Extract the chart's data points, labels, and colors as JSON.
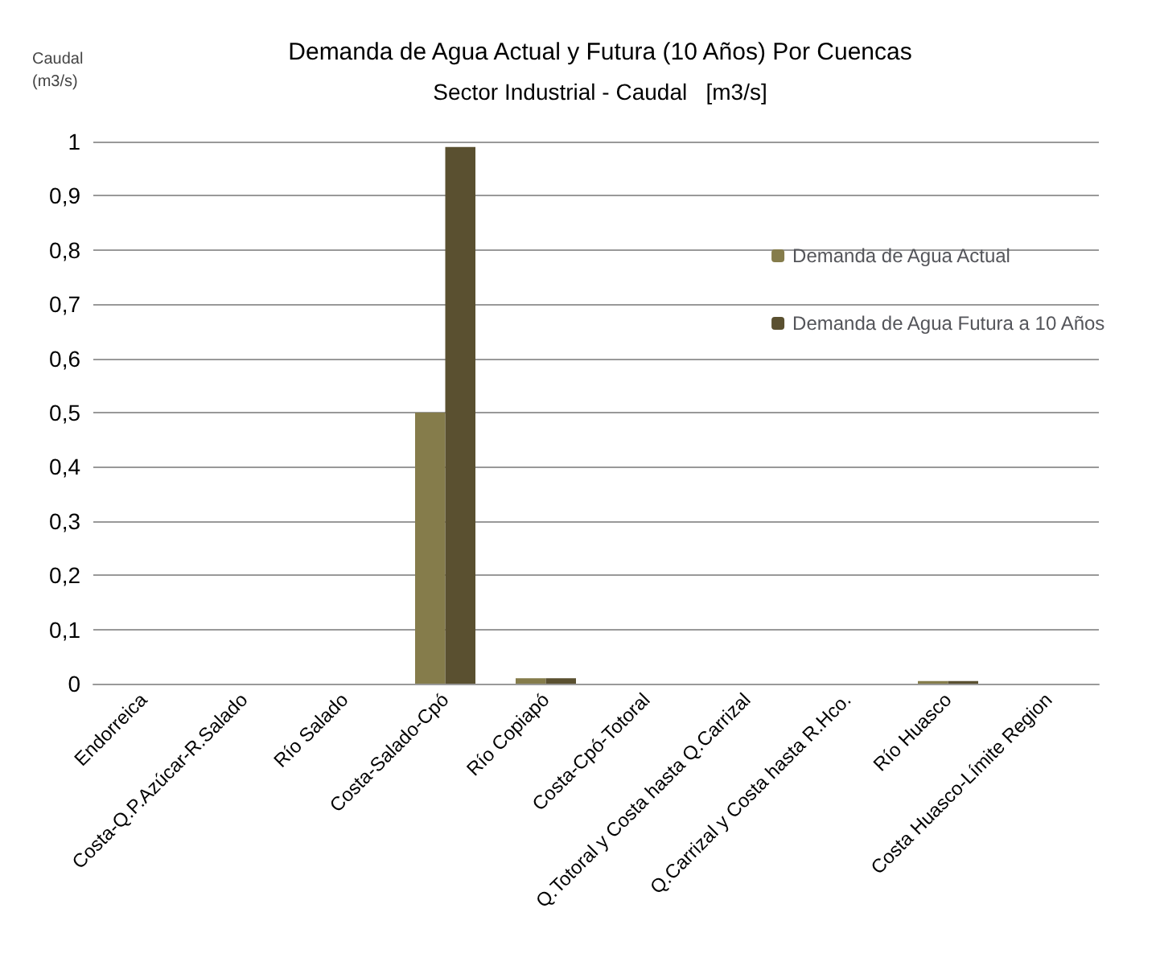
{
  "chart_data": {
    "type": "bar",
    "title": "Demanda de Agua Actual y Futura (10 Años) Por Cuencas",
    "subtitle": "Sector Industrial - Caudal   [m3/s]",
    "ylabel": "Caudal (m3/s)",
    "categories": [
      "Endorreica",
      "Costa-Q.P.Azúcar-R.Salado",
      "Río Salado",
      "Costa-Salado-Cpó",
      "Río Copiapó",
      "Costa-Cpó-Totoral",
      "Q.Totoral y Costa hasta Q.Carrizal",
      "Q.Carrizal y Costa hasta R.Hco.",
      "Río Huasco",
      "Costa Huasco-Límite Region"
    ],
    "series": [
      {
        "name": "Demanda de Agua Actual",
        "color": "#857c4b",
        "values": [
          0,
          0,
          0,
          0.5,
          0.01,
          0,
          0,
          0,
          0.005,
          0
        ]
      },
      {
        "name": "Demanda de Agua Futura a 10 Años",
        "color": "#5a5030",
        "values": [
          0,
          0,
          0,
          0.99,
          0.01,
          0,
          0,
          0,
          0.005,
          0
        ]
      }
    ],
    "ylim": [
      0,
      1
    ],
    "yticks": [
      0,
      {
        "value": 0.1,
        "label": "0,1"
      },
      {
        "value": 0.2,
        "label": "0,2"
      },
      {
        "value": 0.3,
        "label": "0,3"
      },
      {
        "value": 0.4,
        "label": "0,4"
      },
      {
        "value": 0.5,
        "label": "0,5"
      },
      {
        "value": 0.6,
        "label": "0,6"
      },
      {
        "value": 0.7,
        "label": "0,7"
      },
      {
        "value": 0.8,
        "label": "0,8"
      },
      {
        "value": 0.9,
        "label": "0,9"
      },
      1
    ],
    "grid": "y",
    "legend": "right"
  }
}
